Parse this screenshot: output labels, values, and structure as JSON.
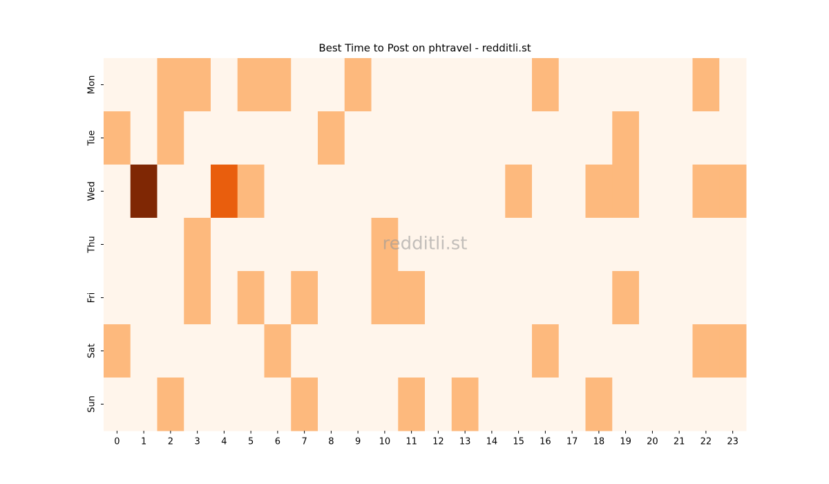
{
  "chart_data": {
    "type": "heatmap",
    "title": "Best Time to Post on phtravel - redditli.st",
    "watermark": "redditli.st",
    "x": [
      0,
      1,
      2,
      3,
      4,
      5,
      6,
      7,
      8,
      9,
      10,
      11,
      12,
      13,
      14,
      15,
      16,
      17,
      18,
      19,
      20,
      21,
      22,
      23
    ],
    "y": [
      "Mon",
      "Tue",
      "Wed",
      "Thu",
      "Fri",
      "Sat",
      "Sun"
    ],
    "values": [
      [
        0,
        0,
        1,
        1,
        0,
        1,
        1,
        0,
        0,
        1,
        0,
        0,
        0,
        0,
        0,
        0,
        1,
        0,
        0,
        0,
        0,
        0,
        1,
        0
      ],
      [
        1,
        0,
        1,
        0,
        0,
        0,
        0,
        0,
        1,
        0,
        0,
        0,
        0,
        0,
        0,
        0,
        0,
        0,
        0,
        1,
        0,
        0,
        0,
        0
      ],
      [
        0,
        3,
        0,
        0,
        2,
        1,
        0,
        0,
        0,
        0,
        0,
        0,
        0,
        0,
        0,
        1,
        0,
        0,
        1,
        1,
        0,
        0,
        1,
        1
      ],
      [
        0,
        0,
        0,
        1,
        0,
        0,
        0,
        0,
        0,
        0,
        1,
        0,
        0,
        0,
        0,
        0,
        0,
        0,
        0,
        0,
        0,
        0,
        0,
        0
      ],
      [
        0,
        0,
        0,
        1,
        0,
        1,
        0,
        1,
        0,
        0,
        1,
        1,
        0,
        0,
        0,
        0,
        0,
        0,
        0,
        1,
        0,
        0,
        0,
        0
      ],
      [
        1,
        0,
        0,
        0,
        0,
        0,
        1,
        0,
        0,
        0,
        0,
        0,
        0,
        0,
        0,
        0,
        1,
        0,
        0,
        0,
        0,
        0,
        1,
        1
      ],
      [
        0,
        0,
        1,
        0,
        0,
        0,
        0,
        1,
        0,
        0,
        0,
        1,
        0,
        1,
        0,
        0,
        0,
        0,
        1,
        0,
        0,
        0,
        0,
        0
      ]
    ],
    "colors": [
      "#fff5eb",
      "#fdb97d",
      "#e95e0d",
      "#7f2704"
    ]
  }
}
